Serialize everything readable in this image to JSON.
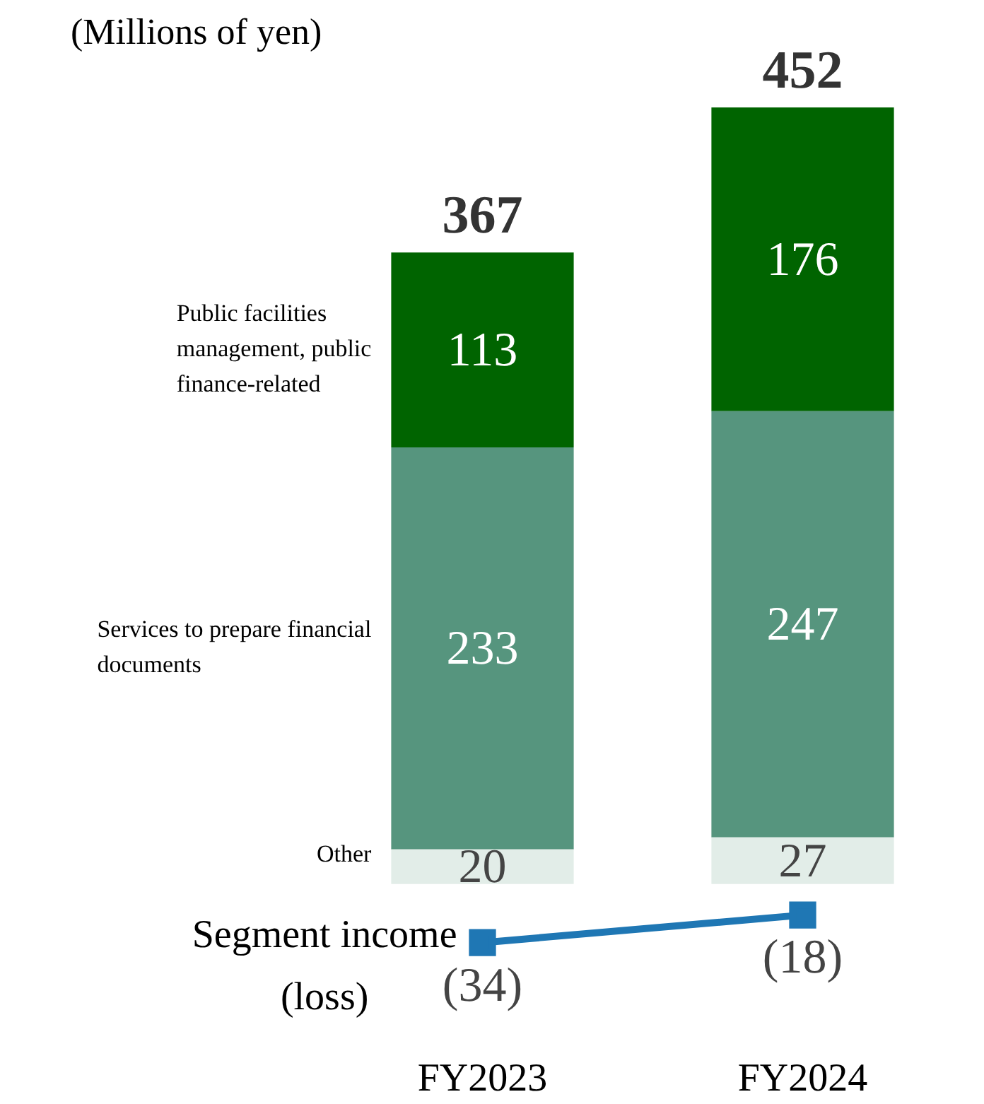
{
  "chart_data": {
    "type": "bar",
    "stacked": true,
    "ylabel": "(Millions of yen)",
    "categories": [
      "FY2023",
      "FY2024"
    ],
    "series": [
      {
        "name": "Other",
        "color": "#e2ede8",
        "values": [
          20,
          27
        ]
      },
      {
        "name": "Services to prepare financial documents",
        "color": "#56957e",
        "values": [
          233,
          247
        ]
      },
      {
        "name": "Public facilities management, public finance-related",
        "color": "#006400",
        "values": [
          113,
          176
        ]
      },
      {
        "name": "Segment income (loss)",
        "type": "line",
        "color": "#1f77b4",
        "values": [
          -34,
          -18
        ],
        "value_labels": [
          "(34)",
          "(18)"
        ]
      }
    ],
    "data_labels": true,
    "totals": [
      "367",
      "452"
    ],
    "tick_labels": "x",
    "grid": false,
    "legend": false,
    "marker": "square"
  }
}
